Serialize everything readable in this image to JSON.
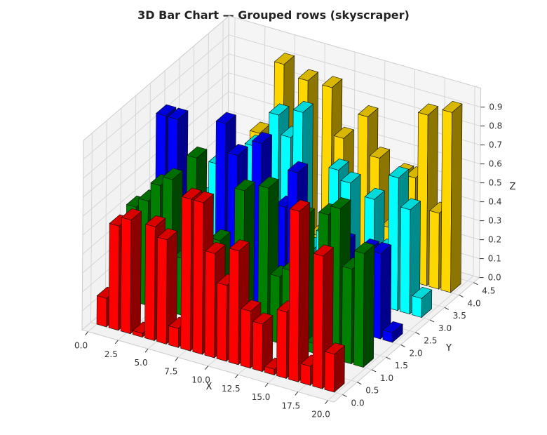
{
  "chart_data": {
    "type": "bar3d",
    "title": "3D Bar Chart — Grouped rows (skyscraper)",
    "xlabel": "X",
    "ylabel": "Y",
    "zlabel": "Z",
    "xlim": [
      0,
      20
    ],
    "ylim": [
      0,
      4.5
    ],
    "zlim": [
      0,
      0.95
    ],
    "x_ticks": [
      "0.0",
      "2.5",
      "5.0",
      "7.5",
      "10.0",
      "12.5",
      "15.0",
      "17.5",
      "20.0"
    ],
    "y_ticks": [
      "0.0",
      "0.5",
      "1.0",
      "1.5",
      "2.0",
      "2.5",
      "3.0",
      "3.5",
      "4.0",
      "4.5"
    ],
    "z_ticks": [
      "0.0",
      "0.1",
      "0.2",
      "0.3",
      "0.4",
      "0.5",
      "0.6",
      "0.7",
      "0.8",
      "0.9"
    ],
    "grid": true,
    "x": [
      0,
      1,
      2,
      3,
      4,
      5,
      6,
      7,
      8,
      9,
      10,
      11,
      12,
      13,
      14,
      15,
      16,
      17,
      18,
      19
    ],
    "series": [
      {
        "y": 0,
        "color": "#ff0000",
        "values": [
          0.15,
          0.55,
          0.6,
          0.02,
          0.6,
          0.55,
          0.1,
          0.8,
          0.8,
          0.55,
          0.4,
          0.6,
          0.3,
          0.25,
          0.03,
          0.35,
          0.9,
          0.1,
          0.7,
          0.2
        ]
      },
      {
        "y": 1,
        "color": "#008000",
        "values": [
          0.5,
          0.55,
          0.65,
          0.7,
          0.3,
          0.85,
          0.2,
          0.45,
          0.2,
          0.75,
          0.1,
          0.8,
          0.35,
          0.4,
          0.7,
          0.05,
          0.75,
          0.8,
          0.5,
          0.6
        ]
      },
      {
        "y": 2,
        "color": "#0000ff",
        "values": [
          0.85,
          0.85,
          0.2,
          0.3,
          0.15,
          0.9,
          0.75,
          0.1,
          0.85,
          0.3,
          0.55,
          0.75,
          0.2,
          0.3,
          0.5,
          0.45,
          0.1,
          0.45,
          0.45,
          0.05
        ]
      },
      {
        "y": 3,
        "color": "#00ffff",
        "values": [
          0.2,
          0.3,
          0.5,
          0.55,
          0.1,
          0.65,
          0.4,
          0.85,
          0.75,
          0.9,
          0.2,
          0.3,
          0.65,
          0.6,
          0.1,
          0.55,
          0.3,
          0.7,
          0.55,
          0.1
        ]
      },
      {
        "y": 4,
        "color": "#ffd700",
        "values": [
          0.1,
          0.3,
          0.2,
          0.55,
          0.05,
          0.95,
          0.2,
          0.9,
          0.1,
          0.9,
          0.65,
          0.15,
          0.8,
          0.6,
          0.25,
          0.55,
          0.55,
          0.9,
          0.4,
          0.95
        ]
      }
    ]
  }
}
